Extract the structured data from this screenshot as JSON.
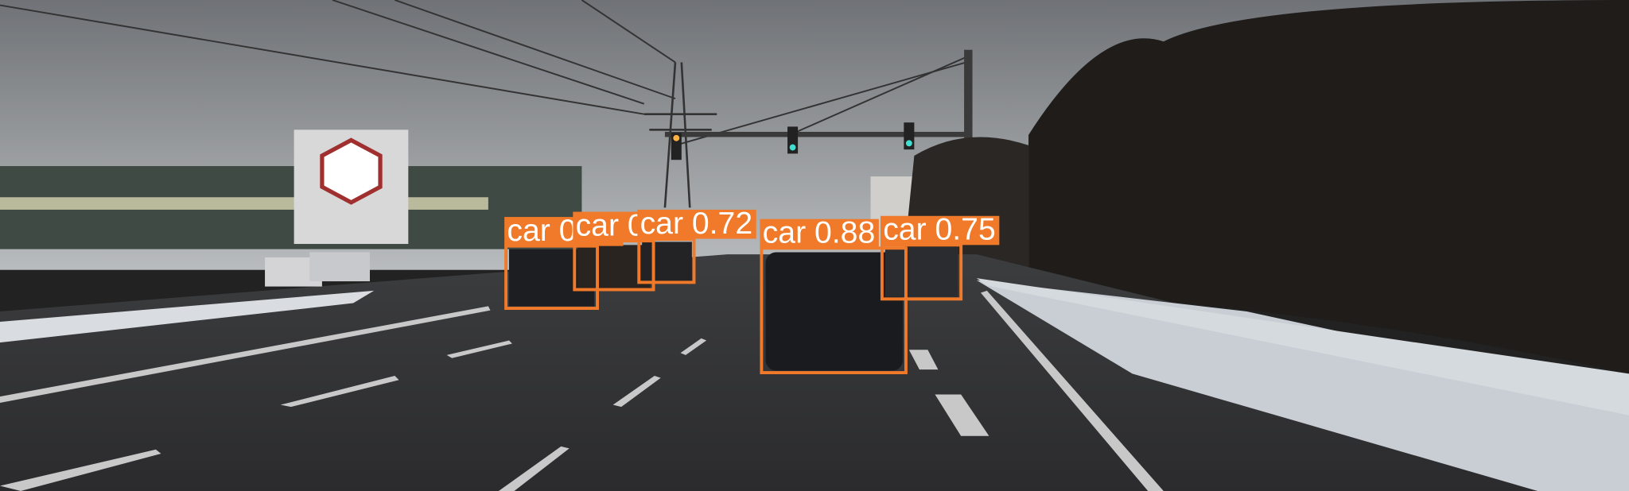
{
  "detections": [
    {
      "label": "car 0.74"
    },
    {
      "label": "car 0.73"
    },
    {
      "label": "car 0.72"
    },
    {
      "label": "car 0.75"
    },
    {
      "label": "car 0.88"
    }
  ]
}
